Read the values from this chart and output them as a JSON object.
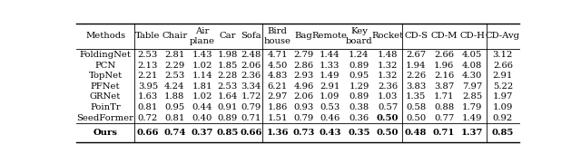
{
  "columns": [
    "Methods",
    "Table",
    "Chair",
    "Air\nplane",
    "Car",
    "Sofa",
    "Bird\nhouse",
    "Bag",
    "Remote",
    "Key\nboard",
    "Rocket",
    "CD-S",
    "CD-M",
    "CD-H",
    "CD-Avg"
  ],
  "rows": [
    [
      "FoldingNet",
      "2.53",
      "2.81",
      "1.43",
      "1.98",
      "2.48",
      "4.71",
      "2.79",
      "1.44",
      "1.24",
      "1.48",
      "2.67",
      "2.66",
      "4.05",
      "3.12"
    ],
    [
      "PCN",
      "2.13",
      "2.29",
      "1.02",
      "1.85",
      "2.06",
      "4.50",
      "2.86",
      "1.33",
      "0.89",
      "1.32",
      "1.94",
      "1.96",
      "4.08",
      "2.66"
    ],
    [
      "TopNet",
      "2.21",
      "2.53",
      "1.14",
      "2.28",
      "2.36",
      "4.83",
      "2.93",
      "1.49",
      "0.95",
      "1.32",
      "2.26",
      "2.16",
      "4.30",
      "2.91"
    ],
    [
      "PFNet",
      "3.95",
      "4.24",
      "1.81",
      "2.53",
      "3.34",
      "6.21",
      "4.96",
      "2.91",
      "1.29",
      "2.36",
      "3.83",
      "3.87",
      "7.97",
      "5.22"
    ],
    [
      "GRNet",
      "1.63",
      "1.88",
      "1.02",
      "1.64",
      "1.72",
      "2.97",
      "2.06",
      "1.09",
      "0.89",
      "1.03",
      "1.35",
      "1.71",
      "2.85",
      "1.97"
    ],
    [
      "PoinTr",
      "0.81",
      "0.95",
      "0.44",
      "0.91",
      "0.79",
      "1.86",
      "0.93",
      "0.53",
      "0.38",
      "0.57",
      "0.58",
      "0.88",
      "1.79",
      "1.09"
    ],
    [
      "SeedFormer",
      "0.72",
      "0.81",
      "0.40",
      "0.89",
      "0.71",
      "1.51",
      "0.79",
      "0.46",
      "0.36",
      "0.50",
      "0.50",
      "0.77",
      "1.49",
      "0.92"
    ],
    [
      "Ours",
      "0.66",
      "0.74",
      "0.37",
      "0.85",
      "0.66",
      "1.36",
      "0.73",
      "0.43",
      "0.35",
      "0.50",
      "0.48",
      "0.71",
      "1.37",
      "0.85"
    ]
  ],
  "bold_row6_col9": true,
  "col_widths_rel": [
    1.2,
    0.55,
    0.55,
    0.58,
    0.48,
    0.48,
    0.6,
    0.48,
    0.6,
    0.6,
    0.58,
    0.58,
    0.58,
    0.58,
    0.68
  ],
  "vsep_after_cols": [
    0,
    5,
    10,
    13
  ],
  "bg_color": "#ffffff",
  "text_color": "#000000",
  "font_size": 7.2,
  "line_thick": 1.0,
  "line_thin": 0.6
}
